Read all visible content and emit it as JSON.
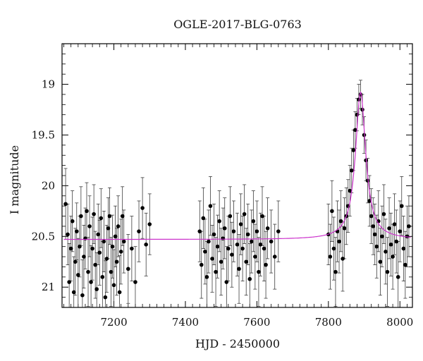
{
  "chart_data": {
    "type": "scatter",
    "title": "OGLE-2017-BLG-0763",
    "xlabel": "HJD - 2450000",
    "ylabel": "I magnitude",
    "xlim": [
      7055,
      8035
    ],
    "ylim": [
      21.2,
      18.6
    ],
    "y_inverted": true,
    "x_ticks": [
      7200,
      7400,
      7600,
      7800,
      8000
    ],
    "y_ticks": [
      19,
      19.5,
      20,
      20.5,
      21
    ],
    "x_tick_labels": [
      "7200",
      "7400",
      "7600",
      "7800",
      "8000"
    ],
    "y_tick_labels": [
      "19",
      "19.5",
      "20",
      "20.5",
      "21"
    ],
    "grid": false,
    "colors": {
      "points": "#000000",
      "model": "#cc33cc"
    },
    "series": [
      {
        "type": "scatter_with_errorbars",
        "points": [
          {
            "x": 7065,
            "y": 20.18,
            "e": 0.35
          },
          {
            "x": 7071,
            "y": 20.48,
            "e": 0.3
          },
          {
            "x": 7075,
            "y": 20.95,
            "e": 0.38
          },
          {
            "x": 7080,
            "y": 20.62,
            "e": 0.32
          },
          {
            "x": 7084,
            "y": 20.35,
            "e": 0.3
          },
          {
            "x": 7088,
            "y": 21.05,
            "e": 0.35
          },
          {
            "x": 7092,
            "y": 20.75,
            "e": 0.33
          },
          {
            "x": 7096,
            "y": 20.45,
            "e": 0.28
          },
          {
            "x": 7100,
            "y": 20.88,
            "e": 0.36
          },
          {
            "x": 7104,
            "y": 20.6,
            "e": 0.3
          },
          {
            "x": 7108,
            "y": 20.3,
            "e": 0.29
          },
          {
            "x": 7112,
            "y": 21.08,
            "e": 0.35
          },
          {
            "x": 7116,
            "y": 20.7,
            "e": 0.31
          },
          {
            "x": 7120,
            "y": 20.52,
            "e": 0.3
          },
          {
            "x": 7124,
            "y": 20.25,
            "e": 0.28
          },
          {
            "x": 7128,
            "y": 20.85,
            "e": 0.34
          },
          {
            "x": 7132,
            "y": 20.4,
            "e": 0.3
          },
          {
            "x": 7136,
            "y": 20.95,
            "e": 0.36
          },
          {
            "x": 7140,
            "y": 20.62,
            "e": 0.31
          },
          {
            "x": 7144,
            "y": 20.28,
            "e": 0.29
          },
          {
            "x": 7148,
            "y": 20.78,
            "e": 0.33
          },
          {
            "x": 7152,
            "y": 21.02,
            "e": 0.36
          },
          {
            "x": 7156,
            "y": 20.48,
            "e": 0.3
          },
          {
            "x": 7160,
            "y": 20.66,
            "e": 0.32
          },
          {
            "x": 7164,
            "y": 20.32,
            "e": 0.29
          },
          {
            "x": 7168,
            "y": 20.9,
            "e": 0.35
          },
          {
            "x": 7172,
            "y": 20.55,
            "e": 0.3
          },
          {
            "x": 7176,
            "y": 21.1,
            "e": 0.36
          },
          {
            "x": 7180,
            "y": 20.72,
            "e": 0.33
          },
          {
            "x": 7184,
            "y": 20.42,
            "e": 0.3
          },
          {
            "x": 7188,
            "y": 20.3,
            "e": 0.28
          },
          {
            "x": 7192,
            "y": 20.85,
            "e": 0.34
          },
          {
            "x": 7196,
            "y": 20.6,
            "e": 0.31
          },
          {
            "x": 7200,
            "y": 20.98,
            "e": 0.35
          },
          {
            "x": 7204,
            "y": 20.5,
            "e": 0.3
          },
          {
            "x": 7208,
            "y": 20.75,
            "e": 0.33
          },
          {
            "x": 7212,
            "y": 20.4,
            "e": 0.3
          },
          {
            "x": 7216,
            "y": 21.05,
            "e": 0.36
          },
          {
            "x": 7220,
            "y": 20.65,
            "e": 0.32
          },
          {
            "x": 7224,
            "y": 20.3,
            "e": 0.29
          },
          {
            "x": 7228,
            "y": 20.55,
            "e": 0.31
          },
          {
            "x": 7240,
            "y": 20.82,
            "e": 0.34
          },
          {
            "x": 7250,
            "y": 20.62,
            "e": 0.32
          },
          {
            "x": 7260,
            "y": 20.95,
            "e": 0.35
          },
          {
            "x": 7270,
            "y": 20.45,
            "e": 0.3
          },
          {
            "x": 7280,
            "y": 20.22,
            "e": 0.3
          },
          {
            "x": 7290,
            "y": 20.58,
            "e": 0.31
          },
          {
            "x": 7300,
            "y": 20.38,
            "e": 0.3
          },
          {
            "x": 7440,
            "y": 20.45,
            "e": 0.3
          },
          {
            "x": 7445,
            "y": 20.78,
            "e": 0.33
          },
          {
            "x": 7450,
            "y": 20.32,
            "e": 0.3
          },
          {
            "x": 7455,
            "y": 20.65,
            "e": 0.32
          },
          {
            "x": 7460,
            "y": 20.9,
            "e": 0.35
          },
          {
            "x": 7465,
            "y": 20.55,
            "e": 0.31
          },
          {
            "x": 7470,
            "y": 20.2,
            "e": 0.29
          },
          {
            "x": 7475,
            "y": 20.72,
            "e": 0.33
          },
          {
            "x": 7480,
            "y": 20.48,
            "e": 0.3
          },
          {
            "x": 7485,
            "y": 20.85,
            "e": 0.34
          },
          {
            "x": 7490,
            "y": 20.6,
            "e": 0.31
          },
          {
            "x": 7495,
            "y": 20.35,
            "e": 0.3
          },
          {
            "x": 7500,
            "y": 20.75,
            "e": 0.33
          },
          {
            "x": 7505,
            "y": 20.52,
            "e": 0.3
          },
          {
            "x": 7510,
            "y": 20.42,
            "e": 0.3
          },
          {
            "x": 7515,
            "y": 20.95,
            "e": 0.35
          },
          {
            "x": 7520,
            "y": 20.62,
            "e": 0.32
          },
          {
            "x": 7525,
            "y": 20.3,
            "e": 0.29
          },
          {
            "x": 7530,
            "y": 20.68,
            "e": 0.32
          },
          {
            "x": 7535,
            "y": 20.45,
            "e": 0.3
          },
          {
            "x": 7545,
            "y": 20.58,
            "e": 0.31
          },
          {
            "x": 7550,
            "y": 20.82,
            "e": 0.34
          },
          {
            "x": 7555,
            "y": 20.38,
            "e": 0.3
          },
          {
            "x": 7560,
            "y": 20.62,
            "e": 0.32
          },
          {
            "x": 7565,
            "y": 20.28,
            "e": 0.29
          },
          {
            "x": 7570,
            "y": 20.75,
            "e": 0.33
          },
          {
            "x": 7575,
            "y": 20.48,
            "e": 0.3
          },
          {
            "x": 7580,
            "y": 20.92,
            "e": 0.35
          },
          {
            "x": 7585,
            "y": 20.55,
            "e": 0.31
          },
          {
            "x": 7590,
            "y": 20.35,
            "e": 0.3
          },
          {
            "x": 7595,
            "y": 20.7,
            "e": 0.32
          },
          {
            "x": 7600,
            "y": 20.45,
            "e": 0.3
          },
          {
            "x": 7605,
            "y": 20.85,
            "e": 0.34
          },
          {
            "x": 7610,
            "y": 20.58,
            "e": 0.31
          },
          {
            "x": 7615,
            "y": 20.3,
            "e": 0.29
          },
          {
            "x": 7620,
            "y": 20.62,
            "e": 0.32
          },
          {
            "x": 7625,
            "y": 20.78,
            "e": 0.33
          },
          {
            "x": 7630,
            "y": 20.42,
            "e": 0.3
          },
          {
            "x": 7640,
            "y": 20.55,
            "e": 0.31
          },
          {
            "x": 7650,
            "y": 20.7,
            "e": 0.32
          },
          {
            "x": 7660,
            "y": 20.45,
            "e": 0.3
          },
          {
            "x": 7800,
            "y": 20.48,
            "e": 0.3
          },
          {
            "x": 7805,
            "y": 20.7,
            "e": 0.32
          },
          {
            "x": 7810,
            "y": 20.25,
            "e": 0.3
          },
          {
            "x": 7815,
            "y": 20.62,
            "e": 0.31
          },
          {
            "x": 7820,
            "y": 20.85,
            "e": 0.34
          },
          {
            "x": 7825,
            "y": 20.45,
            "e": 0.3
          },
          {
            "x": 7830,
            "y": 20.55,
            "e": 0.31
          },
          {
            "x": 7835,
            "y": 20.35,
            "e": 0.3
          },
          {
            "x": 7840,
            "y": 20.72,
            "e": 0.32
          },
          {
            "x": 7845,
            "y": 20.42,
            "e": 0.3
          },
          {
            "x": 7850,
            "y": 20.3,
            "e": 0.28
          },
          {
            "x": 7855,
            "y": 20.2,
            "e": 0.26
          },
          {
            "x": 7860,
            "y": 20.05,
            "e": 0.25
          },
          {
            "x": 7865,
            "y": 19.85,
            "e": 0.22
          },
          {
            "x": 7870,
            "y": 19.65,
            "e": 0.2
          },
          {
            "x": 7875,
            "y": 19.45,
            "e": 0.18
          },
          {
            "x": 7880,
            "y": 19.3,
            "e": 0.16
          },
          {
            "x": 7885,
            "y": 19.15,
            "e": 0.15
          },
          {
            "x": 7890,
            "y": 19.1,
            "e": 0.14
          },
          {
            "x": 7895,
            "y": 19.25,
            "e": 0.15
          },
          {
            "x": 7900,
            "y": 19.5,
            "e": 0.18
          },
          {
            "x": 7905,
            "y": 19.75,
            "e": 0.2
          },
          {
            "x": 7910,
            "y": 19.95,
            "e": 0.22
          },
          {
            "x": 7915,
            "y": 20.15,
            "e": 0.25
          },
          {
            "x": 7920,
            "y": 20.3,
            "e": 0.27
          },
          {
            "x": 7925,
            "y": 20.4,
            "e": 0.28
          },
          {
            "x": 7930,
            "y": 20.48,
            "e": 0.3
          },
          {
            "x": 7935,
            "y": 20.6,
            "e": 0.31
          },
          {
            "x": 7940,
            "y": 20.35,
            "e": 0.3
          },
          {
            "x": 7945,
            "y": 20.75,
            "e": 0.33
          },
          {
            "x": 7950,
            "y": 20.5,
            "e": 0.3
          },
          {
            "x": 7955,
            "y": 20.28,
            "e": 0.29
          },
          {
            "x": 7960,
            "y": 20.65,
            "e": 0.32
          },
          {
            "x": 7965,
            "y": 20.85,
            "e": 0.34
          },
          {
            "x": 7970,
            "y": 20.42,
            "e": 0.3
          },
          {
            "x": 7975,
            "y": 20.58,
            "e": 0.31
          },
          {
            "x": 7980,
            "y": 20.7,
            "e": 0.32
          },
          {
            "x": 7985,
            "y": 20.38,
            "e": 0.3
          },
          {
            "x": 7990,
            "y": 20.55,
            "e": 0.31
          },
          {
            "x": 7995,
            "y": 20.9,
            "e": 0.35
          },
          {
            "x": 8000,
            "y": 20.45,
            "e": 0.3
          },
          {
            "x": 8005,
            "y": 20.2,
            "e": 0.29
          },
          {
            "x": 8010,
            "y": 20.62,
            "e": 0.32
          },
          {
            "x": 8015,
            "y": 20.78,
            "e": 0.33
          },
          {
            "x": 8020,
            "y": 20.5,
            "e": 0.3
          },
          {
            "x": 8025,
            "y": 20.4,
            "e": 0.3
          }
        ]
      },
      {
        "type": "line",
        "model": {
          "baseline": 20.53,
          "t0": 7890,
          "peak": 19.08,
          "width": 22
        }
      }
    ]
  }
}
